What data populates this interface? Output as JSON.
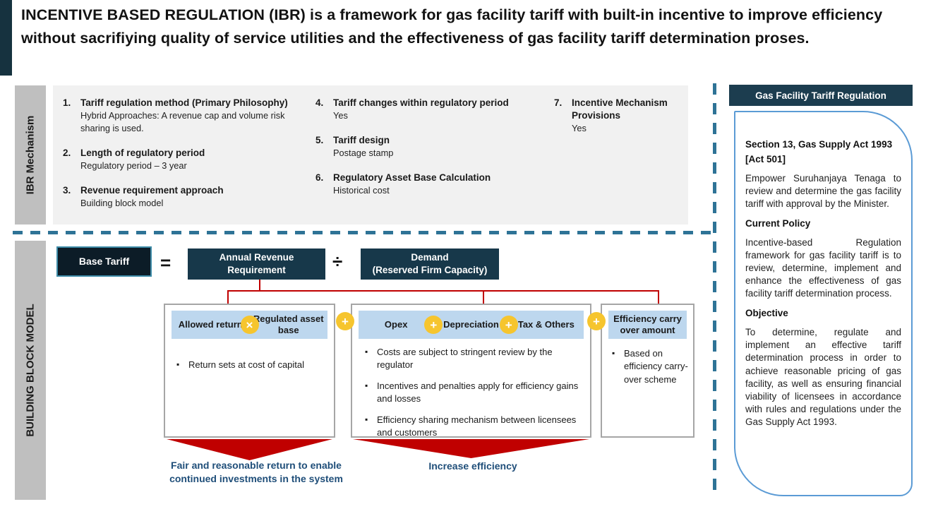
{
  "title": "INCENTIVE BASED REGULATION (IBR) is a framework for gas facility tariff with built-in incentive to improve efficiency without sacrifiying quality of service utilities and the effectiveness of gas facility tariff determination proses.",
  "ibr_mechanism": {
    "label": "IBR Mechanism",
    "items": [
      {
        "num": "1.",
        "title": "Tariff regulation method (Primary Philosophy)",
        "desc": "Hybrid Approaches: A revenue cap and volume risk sharing is used."
      },
      {
        "num": "2.",
        "title": "Length of regulatory period",
        "desc": "Regulatory period – 3 year"
      },
      {
        "num": "3.",
        "title": "Revenue requirement approach",
        "desc": "Building block model"
      },
      {
        "num": "4.",
        "title": "Tariff changes within regulatory period",
        "desc": "Yes"
      },
      {
        "num": "5.",
        "title": "Tariff design",
        "desc": "Postage stamp"
      },
      {
        "num": "6.",
        "title": "Regulatory Asset Base Calculation",
        "desc": "Historical cost"
      },
      {
        "num": "7.",
        "title": "Incentive Mechanism Provisions",
        "desc": "Yes"
      }
    ]
  },
  "building_block": {
    "label": "BUILDING BLOCK MODEL",
    "base_tariff": "Base Tariff",
    "equals_sign": "=",
    "arr_line1": "Annual Revenue",
    "arr_line2": "Requirement",
    "divide_sign": "÷",
    "demand_line1": "Demand",
    "demand_line2": "(Reserved Firm Capacity)",
    "inter_ops": [
      "+",
      "+"
    ],
    "groups": [
      {
        "chips": [
          "Allowed return",
          "Regulated asset base"
        ],
        "ops": [
          "×"
        ],
        "bullets": [
          "Return sets at cost of capital"
        ]
      },
      {
        "chips": [
          "Opex",
          "Depreciation",
          "Tax & Others"
        ],
        "ops": [
          "+",
          "+"
        ],
        "bullets": [
          "Costs are subject to stringent review by the regulator",
          "Incentives and penalties apply for efficiency gains and losses",
          "Efficiency sharing mechanism between licensees and customers"
        ]
      },
      {
        "chips": [
          "Efficiency carry over amount"
        ],
        "ops": [],
        "bullets": [
          "Based on efficiency carry-over scheme"
        ]
      }
    ],
    "callouts": [
      "Fair and reasonable return to enable continued investments in the system",
      "Increase efficiency"
    ]
  },
  "sidebar": {
    "header": "Gas Facility Tariff Regulation",
    "sections": [
      {
        "heading": "Section 13, Gas Supply Act 1993 [Act 501]",
        "body": "Empower Suruhanjaya Tenaga to review and determine the gas facility tariff with approval by the Minister."
      },
      {
        "heading": "Current Policy",
        "body": "Incentive-based Regulation framework for gas facility tariff is to review, determine, implement and enhance the effectiveness of gas facility tariff determination process."
      },
      {
        "heading": "Objective",
        "body": "To determine, regulate and implement an effective tariff determination process in order to achieve reasonable pricing of gas facility, as well as ensuring financial viability of licensees in accordance with rules and regulations under the Gas Supply Act 1993."
      }
    ]
  },
  "colors": {
    "dark_navy": "#16323f",
    "box_teal": "#17384a",
    "chip_blue": "#bdd7ee",
    "operator_gold": "#f6c52e",
    "accent_red": "#c00000",
    "dash_teal": "#2e7396",
    "callout_navy": "#1f4e79",
    "bubble_border": "#5b9bd5",
    "label_gray": "#bfbfbf"
  }
}
